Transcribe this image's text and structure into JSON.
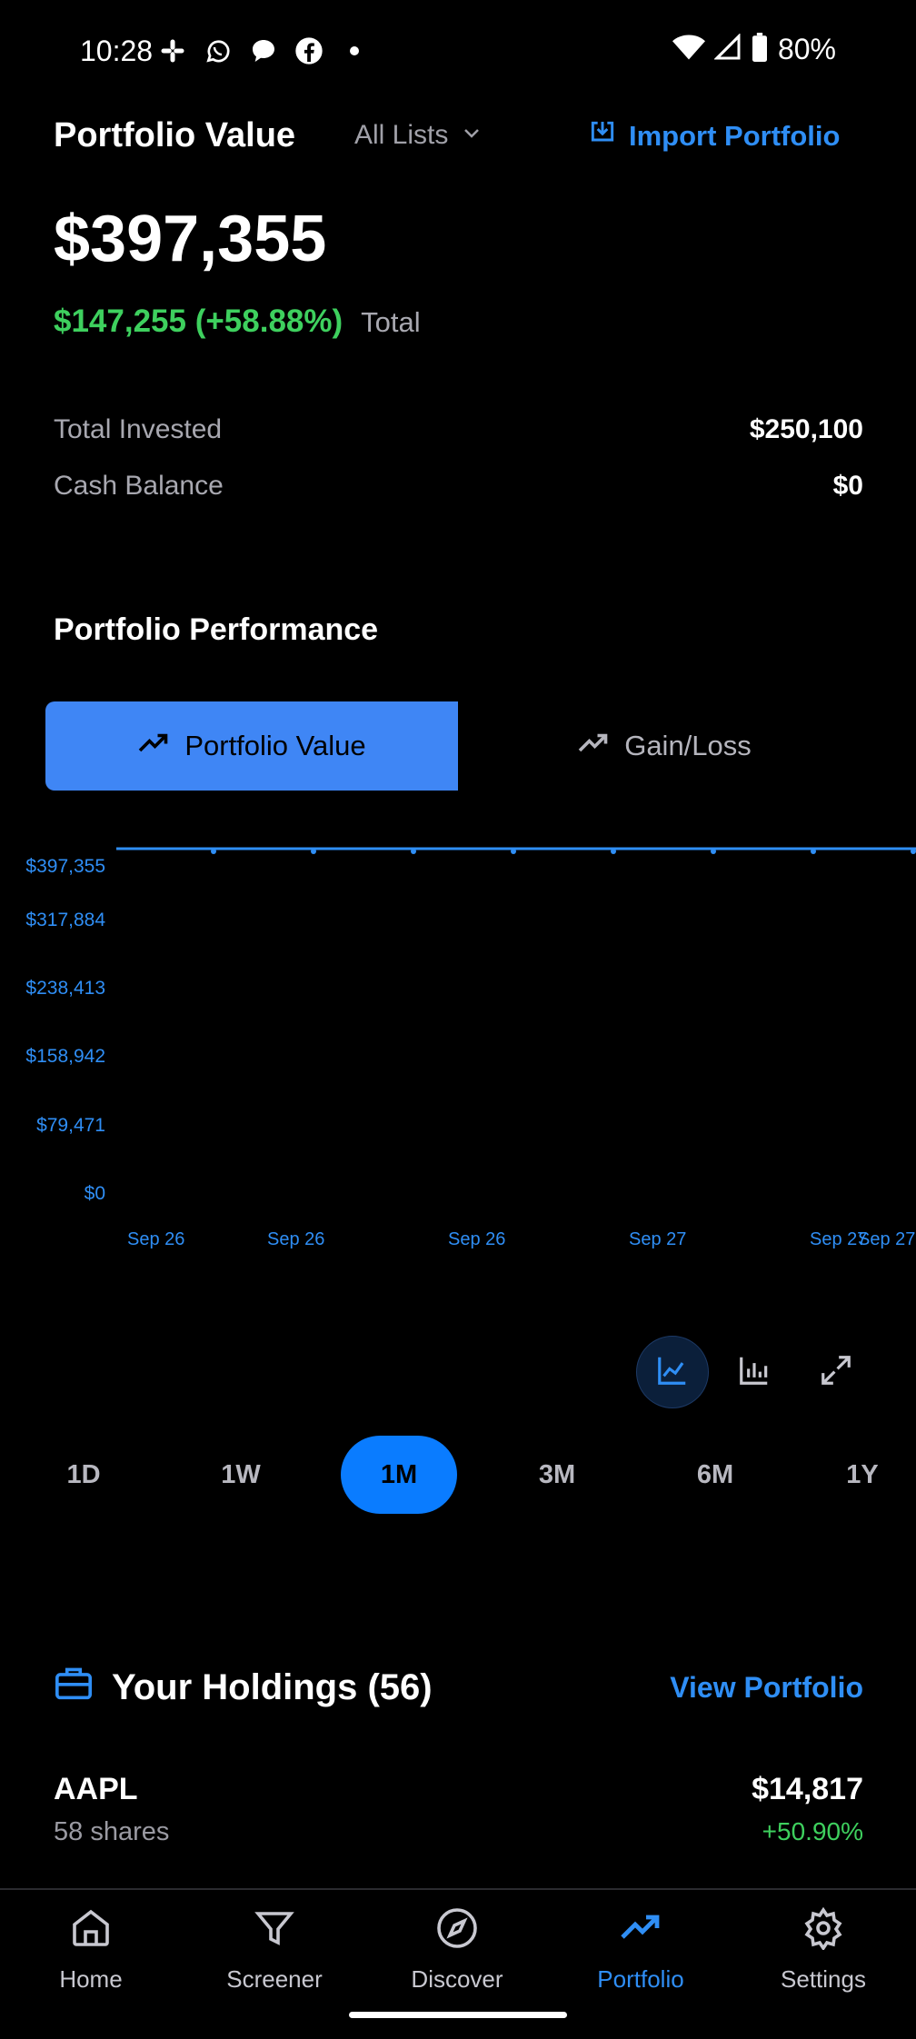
{
  "status_bar": {
    "time": "10:28",
    "battery": "80%",
    "left_icons": [
      "slack-icon",
      "whatsapp-icon",
      "chat-bubble-icon",
      "facebook-icon",
      "dot-icon"
    ],
    "right_icons": [
      "wifi-icon",
      "signal-icon",
      "battery-icon"
    ]
  },
  "header": {
    "title": "Portfolio Value",
    "list_select": "All Lists",
    "import_label": "Import Portfolio"
  },
  "summary": {
    "value": "$397,355",
    "gain": "$147,255 (+58.88%)",
    "gain_label": "Total",
    "total_invested_label": "Total Invested",
    "total_invested": "$250,100",
    "cash_balance_label": "Cash Balance",
    "cash_balance": "$0"
  },
  "performance": {
    "title": "Portfolio Performance",
    "tabs": [
      {
        "label": "Portfolio Value",
        "active": true
      },
      {
        "label": "Gain/Loss",
        "active": false
      }
    ]
  },
  "chart_data": {
    "type": "line",
    "y_ticks": [
      "$397,355",
      "$317,884",
      "$238,413",
      "$158,942",
      "$79,471",
      "$0"
    ],
    "x_ticks": [
      "Sep 26",
      "Sep 26",
      "Sep 26",
      "Sep 27",
      "Sep 27",
      "Sep 27"
    ],
    "ylim": [
      0,
      397355
    ],
    "series": [
      {
        "values": [
          397355,
          397355,
          397355,
          397355,
          397355,
          397355,
          397355,
          397355,
          397355
        ]
      }
    ],
    "grid": false
  },
  "ranges": [
    {
      "label": "1D",
      "active": false
    },
    {
      "label": "1W",
      "active": false
    },
    {
      "label": "1M",
      "active": true
    },
    {
      "label": "3M",
      "active": false
    },
    {
      "label": "6M",
      "active": false
    },
    {
      "label": "1Y",
      "active": false
    }
  ],
  "holdings": {
    "title": "Your Holdings (56)",
    "view_label": "View Portfolio",
    "items": [
      {
        "symbol": "AAPL",
        "shares": "58 shares",
        "value": "$14,817",
        "change": "+50.90%"
      }
    ]
  },
  "nav": {
    "items": [
      {
        "label": "Home",
        "icon": "home-icon",
        "active": false
      },
      {
        "label": "Screener",
        "icon": "filter-icon",
        "active": false
      },
      {
        "label": "Discover",
        "icon": "compass-icon",
        "active": false
      },
      {
        "label": "Portfolio",
        "icon": "trending-up-icon",
        "active": true
      },
      {
        "label": "Settings",
        "icon": "gear-icon",
        "active": false
      }
    ]
  },
  "colors": {
    "accent": "#2f8ef5",
    "positive": "#3ed05e",
    "background": "#000000"
  }
}
